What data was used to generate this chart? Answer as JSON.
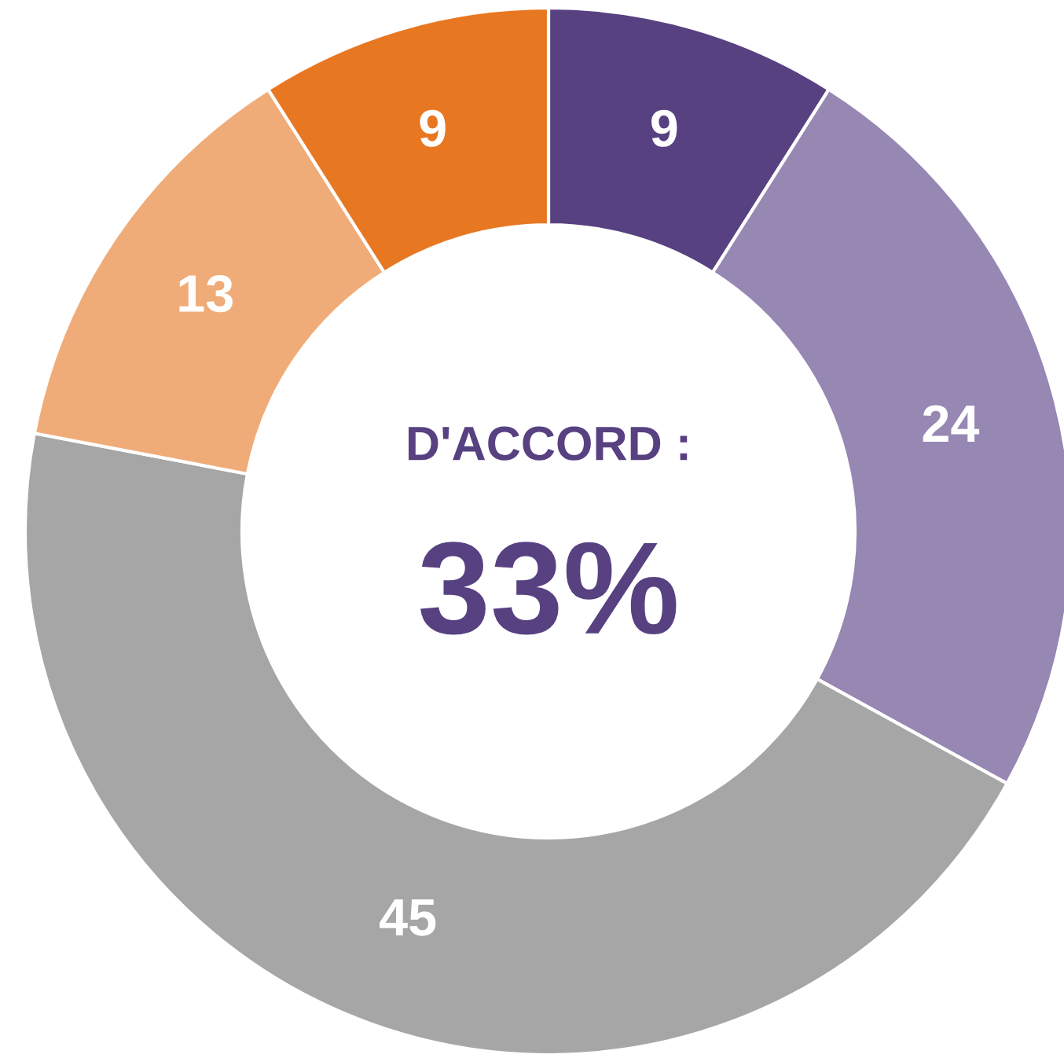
{
  "chart_data": {
    "type": "donut",
    "categories": [
      null,
      null,
      null,
      null,
      null
    ],
    "values": [
      9,
      24,
      45,
      13,
      9
    ],
    "colors": [
      "#574181",
      "#9787b3",
      "#a6a6a6",
      "#f0ac78",
      "#e87722"
    ],
    "data_labels": true,
    "annotations": [
      "D'ACCORD :",
      "33%"
    ]
  }
}
